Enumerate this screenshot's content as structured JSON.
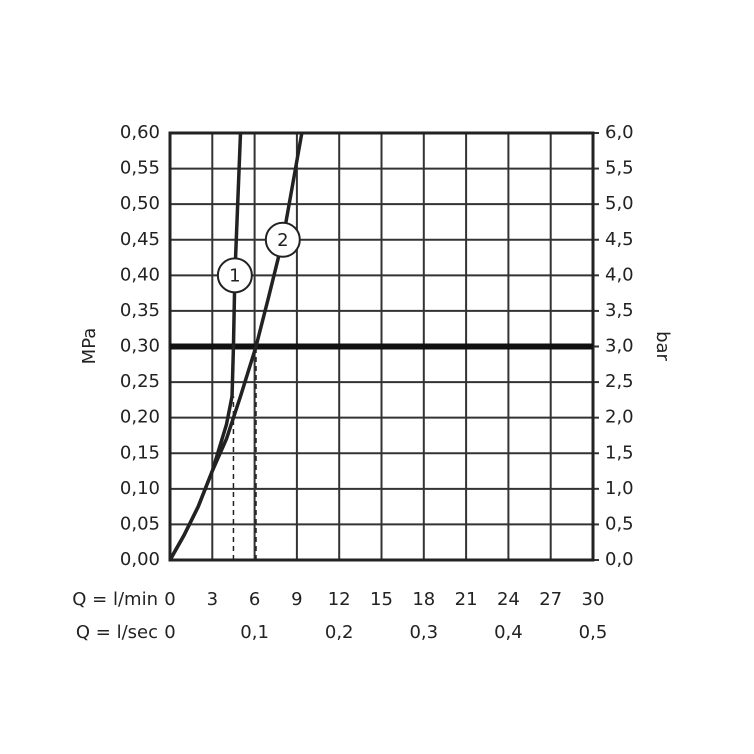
{
  "chart_data": {
    "type": "line",
    "ylabel": "MPa",
    "y2label": "bar",
    "xlabel": "Q = l/min",
    "x2label": "Q = l/sec",
    "xlim": [
      0,
      30
    ],
    "xticks": [
      0,
      3,
      6,
      9,
      12,
      15,
      18,
      21,
      24,
      27,
      30
    ],
    "x2lim": [
      0,
      0.5
    ],
    "x2ticks": [
      0,
      {
        "value": 0.1,
        "label": "0,1"
      },
      {
        "value": 0.2,
        "label": "0,2"
      },
      {
        "value": 0.3,
        "label": "0,3"
      },
      {
        "value": 0.4,
        "label": "0,4"
      },
      {
        "value": 0.5,
        "label": "0,5"
      }
    ],
    "ylim": [
      0,
      0.6
    ],
    "yticks": [
      {
        "value": 0,
        "label": "0,00"
      },
      {
        "value": 0.05,
        "label": "0,05"
      },
      {
        "value": 0.1,
        "label": "0,10"
      },
      {
        "value": 0.15,
        "label": "0,15"
      },
      {
        "value": 0.2,
        "label": "0,20"
      },
      {
        "value": 0.25,
        "label": "0,25"
      },
      {
        "value": 0.3,
        "label": "0,30"
      },
      {
        "value": 0.35,
        "label": "0,35"
      },
      {
        "value": 0.4,
        "label": "0,40"
      },
      {
        "value": 0.45,
        "label": "0,45"
      },
      {
        "value": 0.5,
        "label": "0,50"
      },
      {
        "value": 0.55,
        "label": "0,55"
      },
      {
        "value": 0.6,
        "label": "0,60"
      }
    ],
    "y2lim": [
      0,
      6
    ],
    "y2ticks": [
      {
        "value": 0,
        "label": "0,0"
      },
      {
        "value": 0.5,
        "label": "0,5"
      },
      {
        "value": 1,
        "label": "1,0"
      },
      {
        "value": 1.5,
        "label": "1,5"
      },
      {
        "value": 2,
        "label": "2,0"
      },
      {
        "value": 2.5,
        "label": "2,5"
      },
      {
        "value": 3,
        "label": "3,0"
      },
      {
        "value": 3.5,
        "label": "3,5"
      },
      {
        "value": 4,
        "label": "4,0"
      },
      {
        "value": 4.5,
        "label": "4,5"
      },
      {
        "value": 5,
        "label": "5,0"
      },
      {
        "value": 5.5,
        "label": "5,5"
      },
      {
        "value": 6,
        "label": "6,0"
      }
    ],
    "grid": true,
    "hline": 0.3,
    "drop_lines": [
      {
        "x": 4.5,
        "y": 0.23
      },
      {
        "x": 6.1,
        "y": 0.3
      }
    ],
    "series": [
      {
        "name": "1",
        "color": "#222222",
        "x": [
          0,
          1,
          2,
          3,
          4,
          4.4,
          4.5,
          4.6,
          4.8,
          5.0
        ],
        "values": [
          0,
          0.035,
          0.075,
          0.125,
          0.19,
          0.23,
          0.3,
          0.4,
          0.5,
          0.6
        ]
      },
      {
        "name": "2",
        "color": "#222222",
        "x": [
          0,
          1,
          2,
          3,
          4,
          5,
          6.1,
          7,
          8,
          9.35
        ],
        "values": [
          0,
          0.035,
          0.075,
          0.125,
          0.17,
          0.23,
          0.3,
          0.37,
          0.45,
          0.6
        ]
      }
    ]
  }
}
